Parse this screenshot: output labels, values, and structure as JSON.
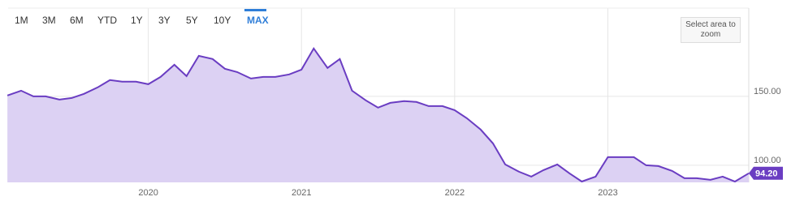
{
  "toolbar": {
    "ranges": [
      "1M",
      "3M",
      "6M",
      "YTD",
      "1Y",
      "3Y",
      "5Y",
      "10Y",
      "MAX"
    ],
    "active": "MAX",
    "zoom_hint": "Select area to zoom"
  },
  "chart_data": {
    "type": "area",
    "x": [
      2019.08,
      2019.17,
      2019.25,
      2019.33,
      2019.42,
      2019.5,
      2019.58,
      2019.67,
      2019.75,
      2019.83,
      2019.92,
      2020,
      2020.08,
      2020.17,
      2020.25,
      2020.33,
      2020.42,
      2020.5,
      2020.58,
      2020.67,
      2020.75,
      2020.83,
      2020.92,
      2021,
      2021.08,
      2021.17,
      2021.25,
      2021.33,
      2021.42,
      2021.5,
      2021.58,
      2021.67,
      2021.75,
      2021.83,
      2021.92,
      2022,
      2022.08,
      2022.17,
      2022.25,
      2022.33,
      2022.42,
      2022.5,
      2022.58,
      2022.67,
      2022.75,
      2022.83,
      2022.92,
      2023,
      2023.08,
      2023.17,
      2023.25,
      2023.33,
      2023.42,
      2023.5,
      2023.58,
      2023.67,
      2023.75,
      2023.83,
      2023.92
    ],
    "series": [
      {
        "color": "#6a3dc2",
        "fill": "#dcd1f3",
        "values": [
          150.6,
          154.1,
          150,
          150,
          147.6,
          148.8,
          151.8,
          156.5,
          161.8,
          160.6,
          160.6,
          158.8,
          164.1,
          172.9,
          164.7,
          179.4,
          177.1,
          170,
          167.6,
          162.9,
          164.1,
          164.1,
          165.9,
          169.4,
          184.7,
          170.6,
          177.1,
          154.1,
          147.1,
          141.8,
          145.3,
          146.5,
          145.9,
          142.9,
          142.9,
          140,
          134.1,
          125.9,
          115.9,
          100.6,
          95.3,
          91.8,
          96.5,
          100.6,
          94.1,
          88.2,
          91.8,
          105.9,
          105.9,
          105.9,
          100,
          99.4,
          95.9,
          90.6,
          90.6,
          89.4,
          91.8,
          88.2,
          94.2
        ]
      }
    ],
    "xlim": [
      2019.085,
      2023.92
    ],
    "xticks": [
      2020,
      2021,
      2022,
      2023
    ],
    "ylim": [
      87.6,
      214
    ],
    "yticks": [
      {
        "value": 100,
        "label": "100.00"
      },
      {
        "value": 150,
        "label": "150.00"
      }
    ],
    "grid": true,
    "current_value": {
      "value": 94.2,
      "label": "94.20"
    }
  }
}
